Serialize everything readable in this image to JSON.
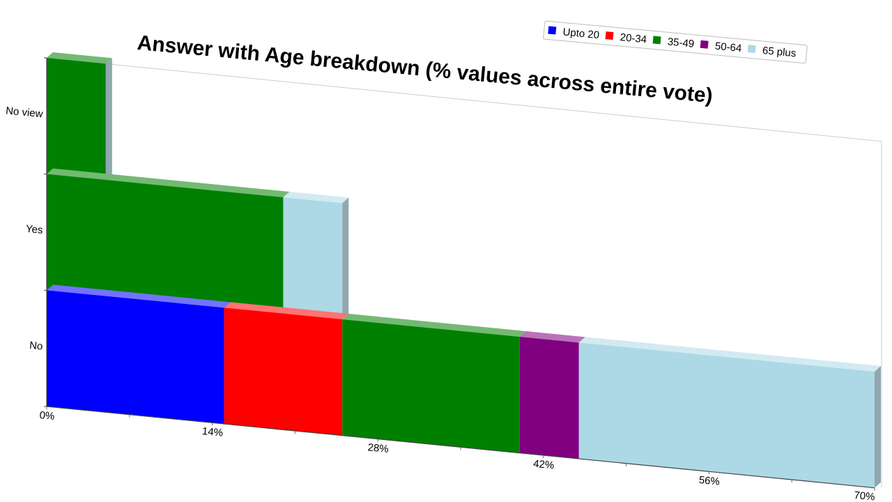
{
  "chart_data": {
    "type": "bar",
    "orientation": "horizontal",
    "stacked": true,
    "title": "Answer with Age breakdown (% values across entire vote)",
    "xlabel": "",
    "ylabel": "",
    "categories": [
      "No",
      "Yes",
      "No view"
    ],
    "x_ticks": [
      "0%",
      "14%",
      "28%",
      "42%",
      "56%",
      "70%"
    ],
    "xlim": [
      0,
      70
    ],
    "legend_position": "top-right",
    "series": [
      {
        "name": "Upto 20",
        "color": "#0000ff",
        "values": [
          15,
          0,
          0
        ]
      },
      {
        "name": "20-34",
        "color": "#ff0000",
        "values": [
          10,
          0,
          0
        ]
      },
      {
        "name": "35-49",
        "color": "#008000",
        "values": [
          15,
          20,
          5
        ]
      },
      {
        "name": "50-64",
        "color": "#800080",
        "values": [
          5,
          0,
          0
        ]
      },
      {
        "name": "65 plus",
        "color": "#add8e6",
        "values": [
          25,
          5,
          0
        ]
      }
    ]
  }
}
